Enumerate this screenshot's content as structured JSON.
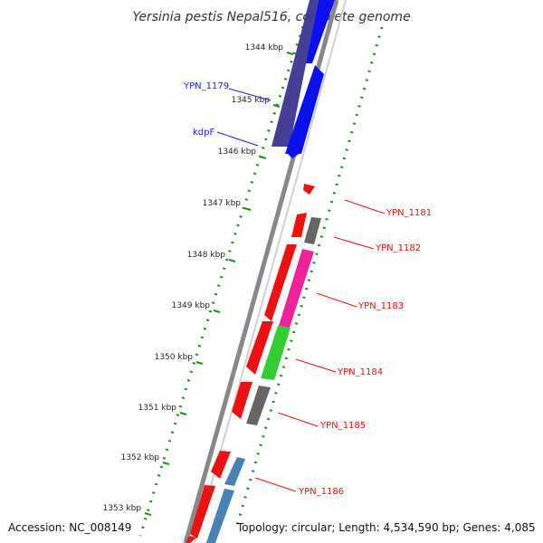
{
  "title": "Yersinia pestis Nepal516, complete genome",
  "footer": {
    "accession": "Accession: NC_008149",
    "topology": "Topology: circular; Length: 4,534,590 bp; Genes: 4,085"
  },
  "ticks": [
    "1344 kbp",
    "1345 kbp",
    "1346 kbp",
    "1347 kbp",
    "1348 kbp",
    "1349 kbp",
    "1350 kbp",
    "1351 kbp",
    "1352 kbp",
    "1353 kbp"
  ],
  "colors": {
    "backbone": "#888888",
    "dots": "#228b22",
    "label_blue": "#1a1adc",
    "label_red": "#dd1111",
    "navy": "#3b3690",
    "blue": "#0a10ee",
    "red": "#ee1111",
    "gray": "#666666",
    "pink": "#ee2299",
    "green": "#33cc33",
    "steel": "#4682b4"
  },
  "labels_left": [
    {
      "text": "YPN_1179"
    },
    {
      "text": "kdpF"
    }
  ],
  "labels_right": [
    {
      "text": "YPN_1181"
    },
    {
      "text": "YPN_1182"
    },
    {
      "text": "YPN_1183"
    },
    {
      "text": "YPN_1184"
    },
    {
      "text": "YPN_1185"
    },
    {
      "text": "YPN_1186"
    }
  ]
}
